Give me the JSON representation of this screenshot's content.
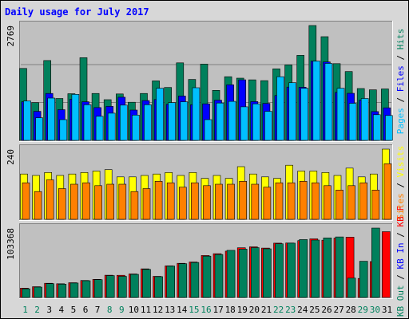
{
  "chart_data": {
    "type": "bar",
    "title": "Daily usage for July 2017",
    "days": [
      "1",
      "2",
      "3",
      "4",
      "5",
      "6",
      "7",
      "8",
      "9",
      "10",
      "11",
      "12",
      "13",
      "14",
      "15",
      "16",
      "17",
      "18",
      "19",
      "20",
      "21",
      "22",
      "23",
      "24",
      "25",
      "26",
      "27",
      "28",
      "29",
      "30",
      "31"
    ],
    "weekend_days": [
      "1",
      "2",
      "8",
      "9",
      "15",
      "16",
      "22",
      "23",
      "29",
      "30"
    ],
    "panels": [
      {
        "id": "hits",
        "max_label": "2769",
        "max": 2769,
        "series": [
          {
            "name": "Hits",
            "color": "#00805c",
            "values": [
              1735,
              910,
              1925,
              1010,
              1125,
              1995,
              1130,
              980,
              1120,
              920,
              1130,
              1435,
              1275,
              1870,
              1470,
              1840,
              1205,
              1535,
              1500,
              1460,
              1440,
              1725,
              1820,
              2050,
              2769,
              2500,
              1850,
              1660,
              1250,
              1220,
              1240
            ]
          },
          {
            "name": "Files",
            "color": "#0000ff",
            "values": [
              930,
              700,
              1130,
              740,
              990,
              930,
              790,
              820,
              1040,
              730,
              960,
              985,
              870,
              1070,
              860,
              880,
              970,
              1340,
              1460,
              935,
              890,
              1080,
              1285,
              1280,
              1910,
              1890,
              1155,
              1135,
              970,
              695,
              785
            ]
          },
          {
            "name": "Pages",
            "color": "#00bfff",
            "values": [
              950,
              545,
              1020,
              500,
              1110,
              860,
              580,
              655,
              850,
              610,
              860,
              1255,
              910,
              930,
              1270,
              500,
              900,
              940,
              810,
              880,
              700,
              1535,
              1390,
              1255,
              1910,
              1855,
              1255,
              895,
              1010,
              620,
              600
            ]
          }
        ],
        "right_labels": [
          {
            "text": "Hits",
            "color": "#00805c"
          },
          {
            "text": "Files",
            "color": "#0000ff"
          },
          {
            "text": "Pages",
            "color": "#00bfff"
          }
        ]
      },
      {
        "id": "visits",
        "max_label": "240",
        "max": 240,
        "series": [
          {
            "name": "Visits",
            "color": "#ffff00",
            "values": [
              155,
              150,
              160,
              150,
              155,
              160,
              165,
              170,
              145,
              145,
              150,
              155,
              160,
              150,
              160,
              140,
              150,
              140,
              180,
              155,
              145,
              140,
              185,
              165,
              165,
              160,
              150,
              175,
              145,
              155,
              240
            ]
          },
          {
            "name": "Sites",
            "color": "#ff8000",
            "values": [
              125,
              95,
              135,
              105,
              120,
              125,
              115,
              120,
              120,
              95,
              105,
              130,
              125,
              110,
              125,
              115,
              120,
              120,
              130,
              120,
              110,
              125,
              125,
              130,
              125,
              115,
              100,
              115,
              125,
              100,
              190
            ]
          }
        ],
        "right_labels": [
          {
            "text": "Visits",
            "color": "#ffff00"
          },
          {
            "text": "Sites",
            "color": "#ff8000"
          }
        ]
      },
      {
        "id": "kbytes",
        "max_label": "103368",
        "max": 103368,
        "series": [
          {
            "name": "KB F",
            "color": "#ff0000",
            "values": [
              13900,
              16000,
              21100,
              20400,
              22000,
              25300,
              27000,
              33200,
              33000,
              35100,
              42700,
              31500,
              47200,
              50800,
              52900,
              62500,
              65200,
              69000,
              74000,
              75400,
              73600,
              80900,
              81200,
              84700,
              87300,
              85300,
              88400,
              89800,
              28300,
              53500,
              98000
            ]
          },
          {
            "name": "KB In",
            "color": "#0000ff",
            "values": [
              0,
              0,
              0,
              0,
              0,
              0,
              0,
              0,
              0,
              0,
              0,
              0,
              0,
              0,
              0,
              0,
              0,
              0,
              0,
              0,
              0,
              0,
              0,
              0,
              0,
              0,
              0,
              0,
              0,
              0,
              0
            ]
          },
          {
            "name": "KB Out",
            "color": "#00805c",
            "values": [
              13000,
              15500,
              20500,
              19900,
              21500,
              25000,
              26500,
              32500,
              31500,
              34500,
              41800,
              31000,
              46800,
              50300,
              52100,
              61500,
              64000,
              70200,
              72000,
              74300,
              72500,
              80000,
              80900,
              86300,
              85600,
              88700,
              90200,
              28900,
              53900,
              103368,
              0
            ]
          }
        ],
        "right_labels": [
          {
            "text": "KB F",
            "color": "#ff0000"
          },
          {
            "text": "KB In",
            "color": "#0000ff"
          },
          {
            "text": "KB Out",
            "color": "#00805c"
          }
        ]
      }
    ]
  }
}
